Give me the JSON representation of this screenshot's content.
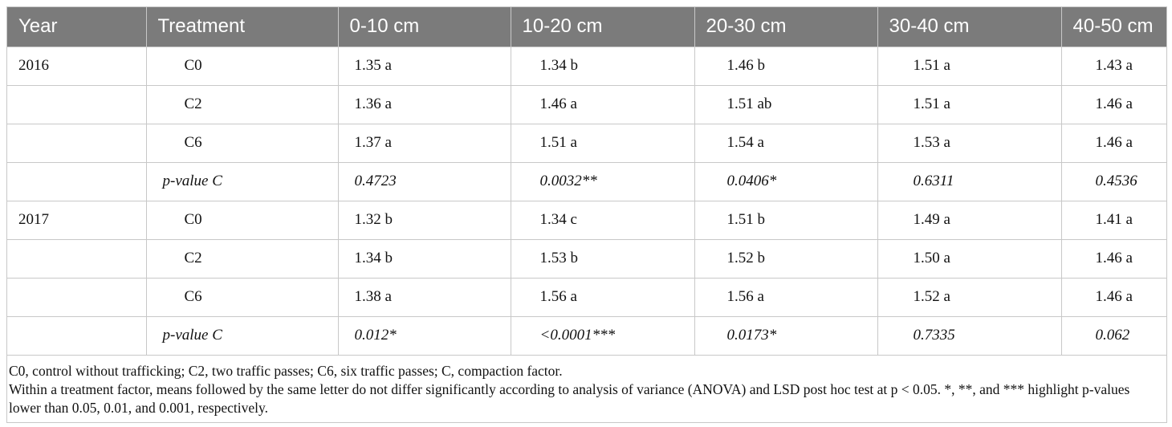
{
  "table": {
    "headers": [
      "Year",
      "Treatment",
      "0-10 cm",
      "10-20 cm",
      "20-30 cm",
      "30-40 cm",
      "40-50 cm"
    ],
    "rows": [
      {
        "year": "2016",
        "treatment": "C0",
        "values": [
          "1.35 a",
          "1.34 b",
          "1.46 b",
          "1.51 a",
          "1.43 a"
        ],
        "pvalue": false
      },
      {
        "year": "",
        "treatment": "C2",
        "values": [
          "1.36 a",
          "1.46 a",
          "1.51 ab",
          "1.51 a",
          "1.46 a"
        ],
        "pvalue": false
      },
      {
        "year": "",
        "treatment": "C6",
        "values": [
          "1.37 a",
          "1.51 a",
          "1.54 a",
          "1.53 a",
          "1.46 a"
        ],
        "pvalue": false
      },
      {
        "year": "",
        "treatment": "p-value C",
        "values": [
          "0.4723",
          "0.0032**",
          "0.0406*",
          "0.6311",
          "0.4536"
        ],
        "pvalue": true
      },
      {
        "year": "2017",
        "treatment": "C0",
        "values": [
          "1.32 b",
          "1.34 c",
          "1.51 b",
          "1.49 a",
          "1.41 a"
        ],
        "pvalue": false
      },
      {
        "year": "",
        "treatment": "C2",
        "values": [
          "1.34 b",
          "1.53 b",
          "1.52 b",
          "1.50 a",
          "1.46 a"
        ],
        "pvalue": false
      },
      {
        "year": "",
        "treatment": "C6",
        "values": [
          "1.38 a",
          "1.56 a",
          "1.56 a",
          "1.52 a",
          "1.46 a"
        ],
        "pvalue": false
      },
      {
        "year": "",
        "treatment": "p-value C",
        "values": [
          "0.012*",
          "<0.0001***",
          "0.0173*",
          "0.7335",
          "0.062"
        ],
        "pvalue": true
      }
    ]
  },
  "notes": [
    "C0, control without trafficking; C2, two traffic passes; C6, six traffic passes; C, compaction factor.",
    "Within a treatment factor, means followed by the same letter do not differ significantly according to analysis of variance (ANOVA) and LSD post hoc test at p < 0.05. *, **, and *** highlight p-values lower than  0.05,  0.01, and 0.001, respectively."
  ],
  "colors": {
    "header_bg": "#7b7b7b",
    "header_text": "#ffffff",
    "border": "#c8c8c8"
  }
}
